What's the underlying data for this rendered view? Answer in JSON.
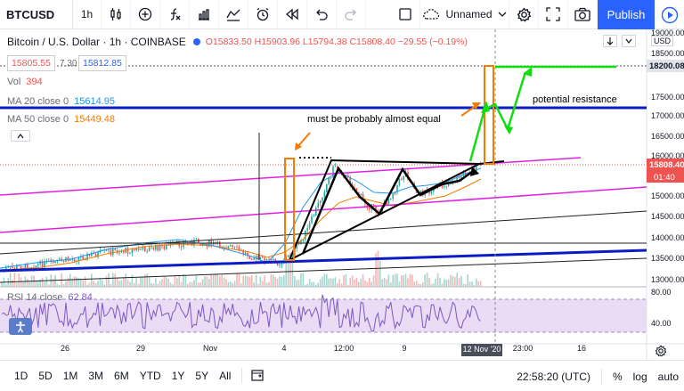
{
  "toolbar": {
    "symbol": "BTCUSD",
    "interval": "1h",
    "layout_name": "Unnamed",
    "publish_label": "Publish",
    "icons": [
      "add-symbol-icon",
      "bar-style-icon",
      "compare-icon",
      "indicators-icon",
      "templates-icon",
      "alert-icon",
      "replay-icon",
      "undo-icon",
      "redo-icon",
      "fullscreen-icon",
      "cloud-icon",
      "settings-icon",
      "fullscreen-icon",
      "camera-icon",
      "play-icon"
    ]
  },
  "legend": {
    "title": "Bitcoin / U.S. Dollar · 1h · COINBASE",
    "ohlc": "O15833.50 H15903.96 L15794.38 C15808.40 −29.55 (−0.19%)",
    "bid": "15805.55",
    "spread": "7.30",
    "ask": "15812.85",
    "vol_label": "Vol",
    "vol_value": "394",
    "ma20_label": "MA 20 close 0",
    "ma20_value": "15614.95",
    "ma50_label": "MA 50 close 0",
    "ma50_value": "15449.48",
    "rsi_label": "RSI 14 close",
    "rsi_value": "62.84"
  },
  "annotations": {
    "equal_note": "must be probably almost equal",
    "resistance_note": "potential resistance"
  },
  "price_axis": {
    "currency": "USD",
    "ticks": [
      "19000.00",
      "18500.00",
      "18000.00",
      "17500.00",
      "17000.00",
      "16500.00",
      "16000.00",
      "15500.00",
      "15000.00",
      "14500.00",
      "14000.00",
      "13500.00",
      "13000.00"
    ],
    "target_label": "18200.08",
    "last_label": "15808.40",
    "countdown": "01:40",
    "rsi_ticks": [
      "80.00",
      "40.00"
    ]
  },
  "time_axis": {
    "ticks": [
      "26",
      "29",
      "Nov",
      "4",
      "12:00",
      "9",
      "12 Nov '20",
      "23:00",
      "16"
    ]
  },
  "bottom": {
    "ranges": [
      "1D",
      "5D",
      "1M",
      "3M",
      "6M",
      "YTD",
      "1Y",
      "5Y",
      "All"
    ],
    "clock": "22:58:20 (UTC)",
    "pct": "%",
    "log": "log",
    "auto": "auto"
  },
  "colors": {
    "accent": "#2962ff",
    "ma20": "#2196f3",
    "ma50": "#f57c00",
    "negative": "#ef5350",
    "rsi": "#7e57c2",
    "trendline_blue": "#0b1cc4",
    "channel_magenta": "#e020e0",
    "projection_green": "#11dd11"
  }
}
